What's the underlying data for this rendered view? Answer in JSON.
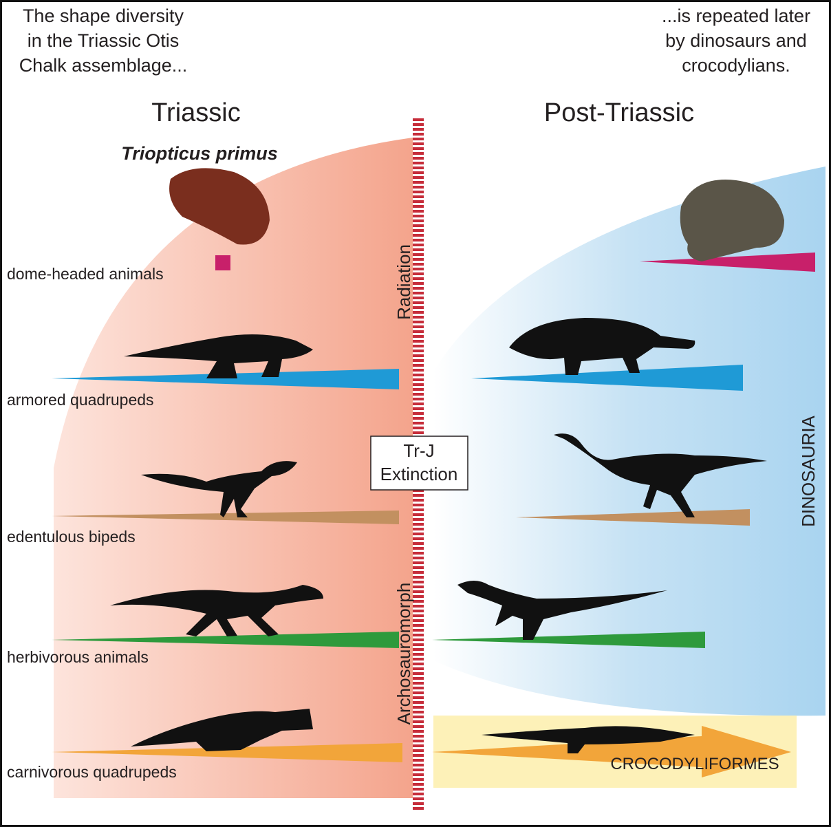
{
  "header": {
    "left_note": [
      "The shape diversity",
      "in the Triassic Otis",
      "Chalk assemblage..."
    ],
    "right_note": [
      "...is repeated later",
      "by dinosaurs and",
      "crocodylians."
    ]
  },
  "periods": {
    "left": "Triassic",
    "right": "Post-Triassic"
  },
  "species": "Triopticus primus",
  "categories": [
    "dome-headed animals",
    "armored quadrupeds",
    "edentulous bipeds",
    "herbivorous animals",
    "carnivorous quadrupeds"
  ],
  "boundary": {
    "radiation": "Radiation",
    "archosauromorph": "Archosauromorph",
    "event": [
      "Tr-J",
      "Extinction"
    ]
  },
  "clades": {
    "dinosauria": "DINOSAURIA",
    "crocodyliformes": "CROCODYLIFORMES"
  }
}
